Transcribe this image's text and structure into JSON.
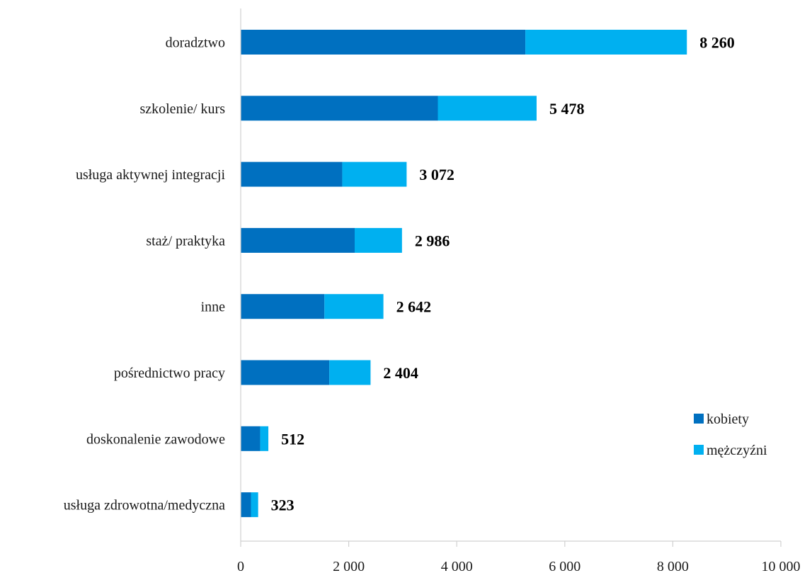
{
  "chart_data": {
    "type": "bar",
    "orientation": "horizontal",
    "stacked": true,
    "categories": [
      "doradztwo",
      "szkolenie/ kurs",
      "usługa aktywnej integracji",
      "staż/ praktyka",
      "inne",
      "pośrednictwo pracy",
      "doskonalenie zawodowe",
      "usługa zdrowotna/medyczna"
    ],
    "series": [
      {
        "name": "kobiety",
        "color": "#0070c0",
        "values": [
          5270,
          3650,
          1880,
          2110,
          1550,
          1640,
          360,
          190
        ]
      },
      {
        "name": "mężczyźni",
        "color": "#00b0f0",
        "values": [
          2990,
          1828,
          1192,
          876,
          1092,
          764,
          152,
          133
        ]
      }
    ],
    "totals": [
      8260,
      5478,
      3072,
      2986,
      2642,
      2404,
      512,
      323
    ],
    "total_labels": [
      "8 260",
      "5 478",
      "3 072",
      "2 986",
      "2 642",
      "2 404",
      "512",
      "323"
    ],
    "xlim": [
      0,
      10000
    ],
    "xticks": [
      0,
      2000,
      4000,
      6000,
      8000,
      10000
    ],
    "xtick_labels": [
      "0",
      "2 000",
      "4 000",
      "6 000",
      "8 000",
      "10 000"
    ],
    "grid": false,
    "legend_position": "right"
  }
}
